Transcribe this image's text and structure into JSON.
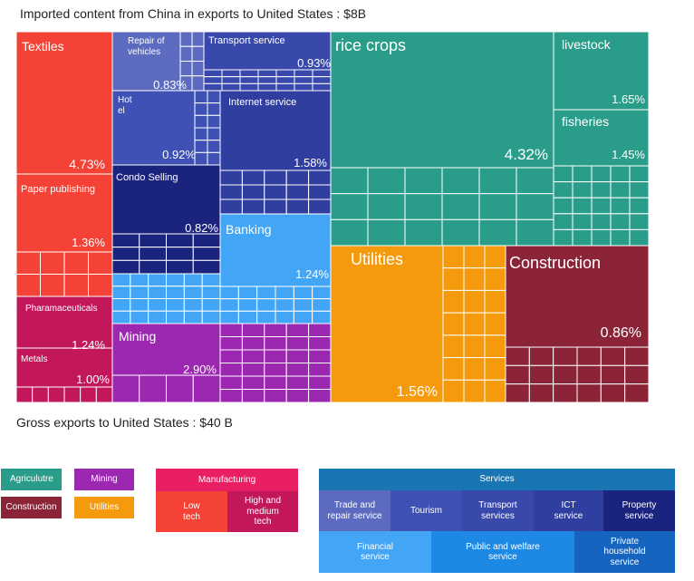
{
  "header": {
    "title": "Imported content from China in exports to United States : $8B",
    "gross": "Gross exports to United States : $40 B"
  },
  "colors": {
    "agriculture": "#2a9d8a",
    "mining": "#9c27b0",
    "construction": "#8c2438",
    "utilities": "#f59a0c",
    "manufacturing": "#e91e63",
    "low_tech": "#f44336",
    "high_tech": "#c2185b",
    "services": "#1976b2",
    "trade_repair": "#5c6bc0",
    "tourism": "#3f51b5",
    "transport": "#3949ab",
    "ict": "#303f9f",
    "property": "#1a237e",
    "financial": "#42a5f5",
    "public_welfare": "#1e88e5",
    "private_household": "#1565c0"
  },
  "chart_data": {
    "type": "treemap",
    "title": "Imported content from China in exports to United States : $8B",
    "total": "$8B",
    "cells": [
      {
        "name": "Textiles",
        "value": 4.73,
        "value_label": "4.73%",
        "category": "low_tech"
      },
      {
        "name": "Paper publishing",
        "value": 1.36,
        "value_label": "1.36%",
        "category": "low_tech"
      },
      {
        "name": "Pharamaceuticals",
        "value": 1.24,
        "value_label": "1.24%",
        "category": "high_tech"
      },
      {
        "name": "Metals",
        "value": 1.0,
        "value_label": "1.00%",
        "category": "high_tech"
      },
      {
        "name": "Repair of\nvehicles",
        "value": 0.83,
        "value_label": "0.83%",
        "category": "trade_repair"
      },
      {
        "name": "Transport service",
        "value": 0.93,
        "value_label": "0.93%",
        "category": "transport"
      },
      {
        "name": "Hot\nel",
        "value": 0.92,
        "value_label": "0.92%",
        "category": "tourism"
      },
      {
        "name": "Internet service",
        "value": 1.58,
        "value_label": "1.58%",
        "category": "ict"
      },
      {
        "name": "Condo Selling",
        "value": 0.82,
        "value_label": "0.82%",
        "category": "property"
      },
      {
        "name": "Banking",
        "value": 1.24,
        "value_label": "1.24%",
        "category": "financial"
      },
      {
        "name": "Mining",
        "value": 2.9,
        "value_label": "2.90%",
        "category": "mining"
      },
      {
        "name": "rice crops",
        "value": 4.32,
        "value_label": "4.32%",
        "category": "agriculture"
      },
      {
        "name": "livestock",
        "value": 1.65,
        "value_label": "1.65%",
        "category": "agriculture"
      },
      {
        "name": "fisheries",
        "value": 1.45,
        "value_label": "1.45%",
        "category": "agriculture"
      },
      {
        "name": "Utilities",
        "value": 1.56,
        "value_label": "1.56%",
        "category": "utilities"
      },
      {
        "name": "Construction",
        "value": 0.86,
        "value_label": "0.86%",
        "category": "construction"
      }
    ]
  },
  "legend": {
    "agriculture": "Agriculutre",
    "mining": "Mining",
    "construction": "Construction",
    "utilities": "Utilities",
    "manufacturing": "Manufacturing",
    "low_tech": "Low\ntech",
    "high_tech": "High and\nmedium\ntech",
    "services": "Services",
    "trade_repair": "Trade and\nrepair service",
    "tourism": "Tourism",
    "transport": "Transport\nservices",
    "ict": "ICT\nservice",
    "property": "Property\nservice",
    "financial": "Financial\nservice",
    "public_welfare": "Public and welfare\nservice",
    "private_household": "Private\nhousehold\nservice"
  }
}
